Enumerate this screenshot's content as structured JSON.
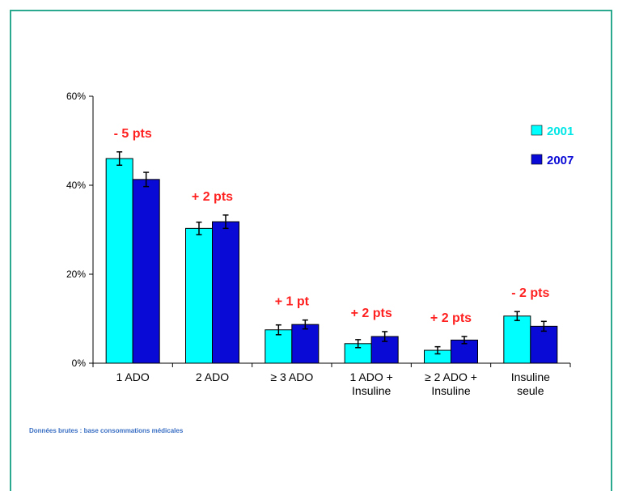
{
  "chart_data": {
    "type": "bar",
    "categories": [
      [
        "1 ADO"
      ],
      [
        "2 ADO"
      ],
      [
        "≥ 3 ADO"
      ],
      [
        "1 ADO +",
        "Insuline"
      ],
      [
        "≥ 2 ADO +",
        "Insuline"
      ],
      [
        "Insuline",
        "seule"
      ]
    ],
    "series": [
      {
        "name": "2001",
        "color": "#00ffff",
        "values": [
          46,
          30.3,
          7.5,
          4.4,
          2.9,
          10.6
        ],
        "errors": [
          1.5,
          1.4,
          1.1,
          0.9,
          0.8,
          1.0
        ]
      },
      {
        "name": "2007",
        "color": "#0a0ad6",
        "values": [
          41.3,
          31.8,
          8.7,
          6.0,
          5.2,
          8.3
        ],
        "errors": [
          1.6,
          1.5,
          1.0,
          1.1,
          0.8,
          1.1
        ]
      }
    ],
    "annotations": [
      "- 5 pts",
      "+ 2 pts",
      "+ 1 pt",
      "+ 2 pts",
      "+ 2 pts",
      "- 2 pts"
    ],
    "y_ticks": [
      "0%",
      "20%",
      "40%",
      "60%"
    ],
    "y_tick_values": [
      0,
      20,
      40,
      60
    ],
    "ylim": [
      0,
      60
    ],
    "legend_position": "top-right",
    "annotation_color": "#ff2020"
  },
  "source_note": "Données brutes : base consommations médicales"
}
